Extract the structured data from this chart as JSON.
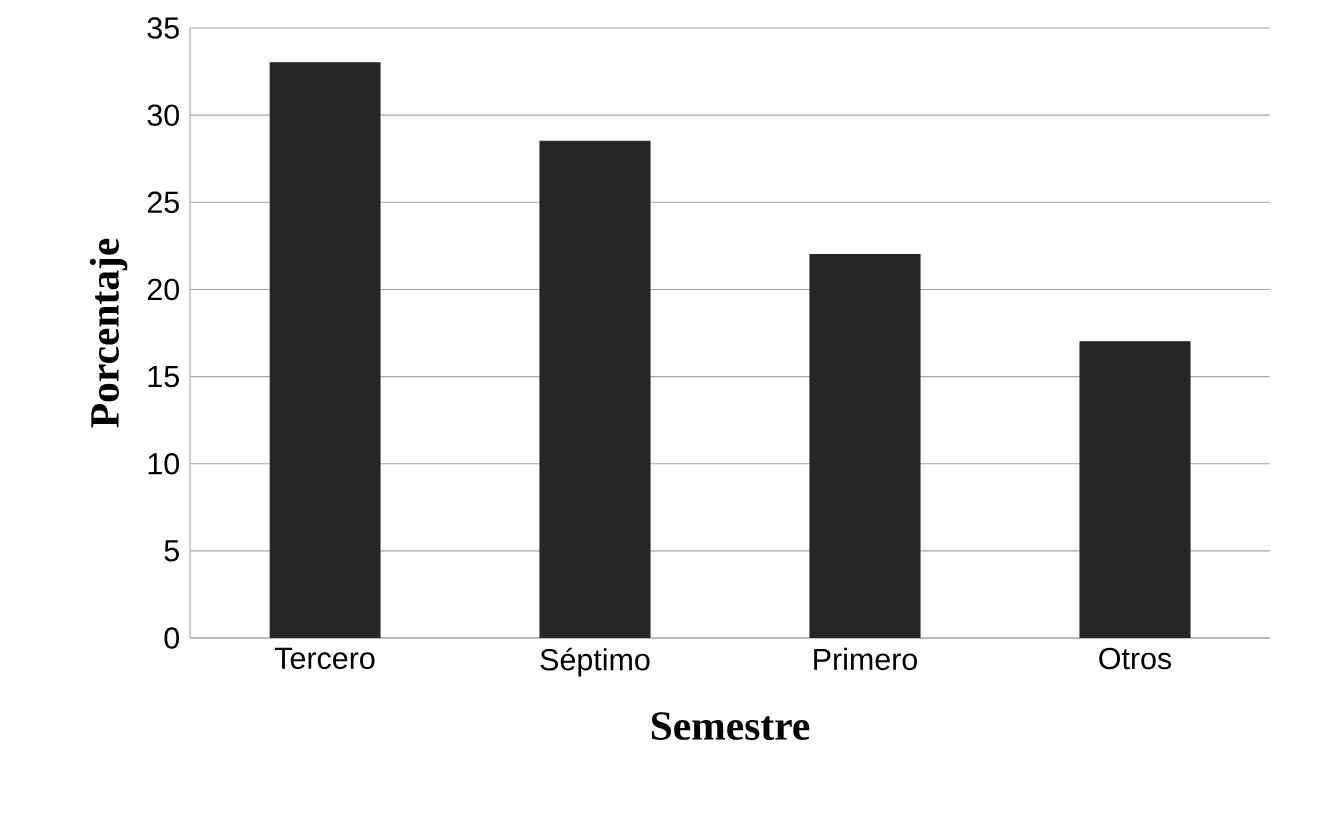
{
  "chart_data": {
    "type": "bar",
    "xlabel": "Semestre",
    "ylabel": "Porcentaje",
    "categories": [
      "Tercero",
      "Séptimo",
      "Primero",
      "Otros"
    ],
    "values": [
      33,
      28.5,
      22,
      17
    ],
    "color": "#262626",
    "ylim": [
      0,
      35
    ],
    "yticks": [
      0,
      5,
      10,
      15,
      20,
      25,
      30,
      35
    ],
    "grid": "y"
  }
}
